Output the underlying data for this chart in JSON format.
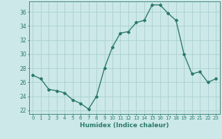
{
  "x": [
    0,
    1,
    2,
    3,
    4,
    5,
    6,
    7,
    8,
    9,
    10,
    11,
    12,
    13,
    14,
    15,
    16,
    17,
    18,
    19,
    20,
    21,
    22,
    23
  ],
  "y": [
    27,
    26.5,
    25,
    24.8,
    24.5,
    23.5,
    23,
    22.2,
    24,
    28,
    31,
    33,
    33.2,
    34.5,
    34.8,
    37,
    37,
    35.8,
    34.8,
    30,
    27.2,
    27.5,
    26,
    26.5
  ],
  "line_color": "#2a7a6a",
  "marker": "D",
  "marker_size": 2.0,
  "bg_color": "#cce8e8",
  "grid_color": "#aacfcf",
  "xlabel": "Humidex (Indice chaleur)",
  "ylim": [
    21.5,
    37.5
  ],
  "xlim": [
    -0.5,
    23.5
  ],
  "yticks": [
    22,
    24,
    26,
    28,
    30,
    32,
    34,
    36
  ],
  "xticks": [
    0,
    1,
    2,
    3,
    4,
    5,
    6,
    7,
    8,
    9,
    10,
    11,
    12,
    13,
    14,
    15,
    16,
    17,
    18,
    19,
    20,
    21,
    22,
    23
  ],
  "xtick_labels": [
    "0",
    "1",
    "2",
    "3",
    "4",
    "5",
    "6",
    "7",
    "8",
    "9",
    "10",
    "11",
    "12",
    "13",
    "14",
    "15",
    "16",
    "17",
    "18",
    "19",
    "20",
    "21",
    "22",
    "23"
  ]
}
